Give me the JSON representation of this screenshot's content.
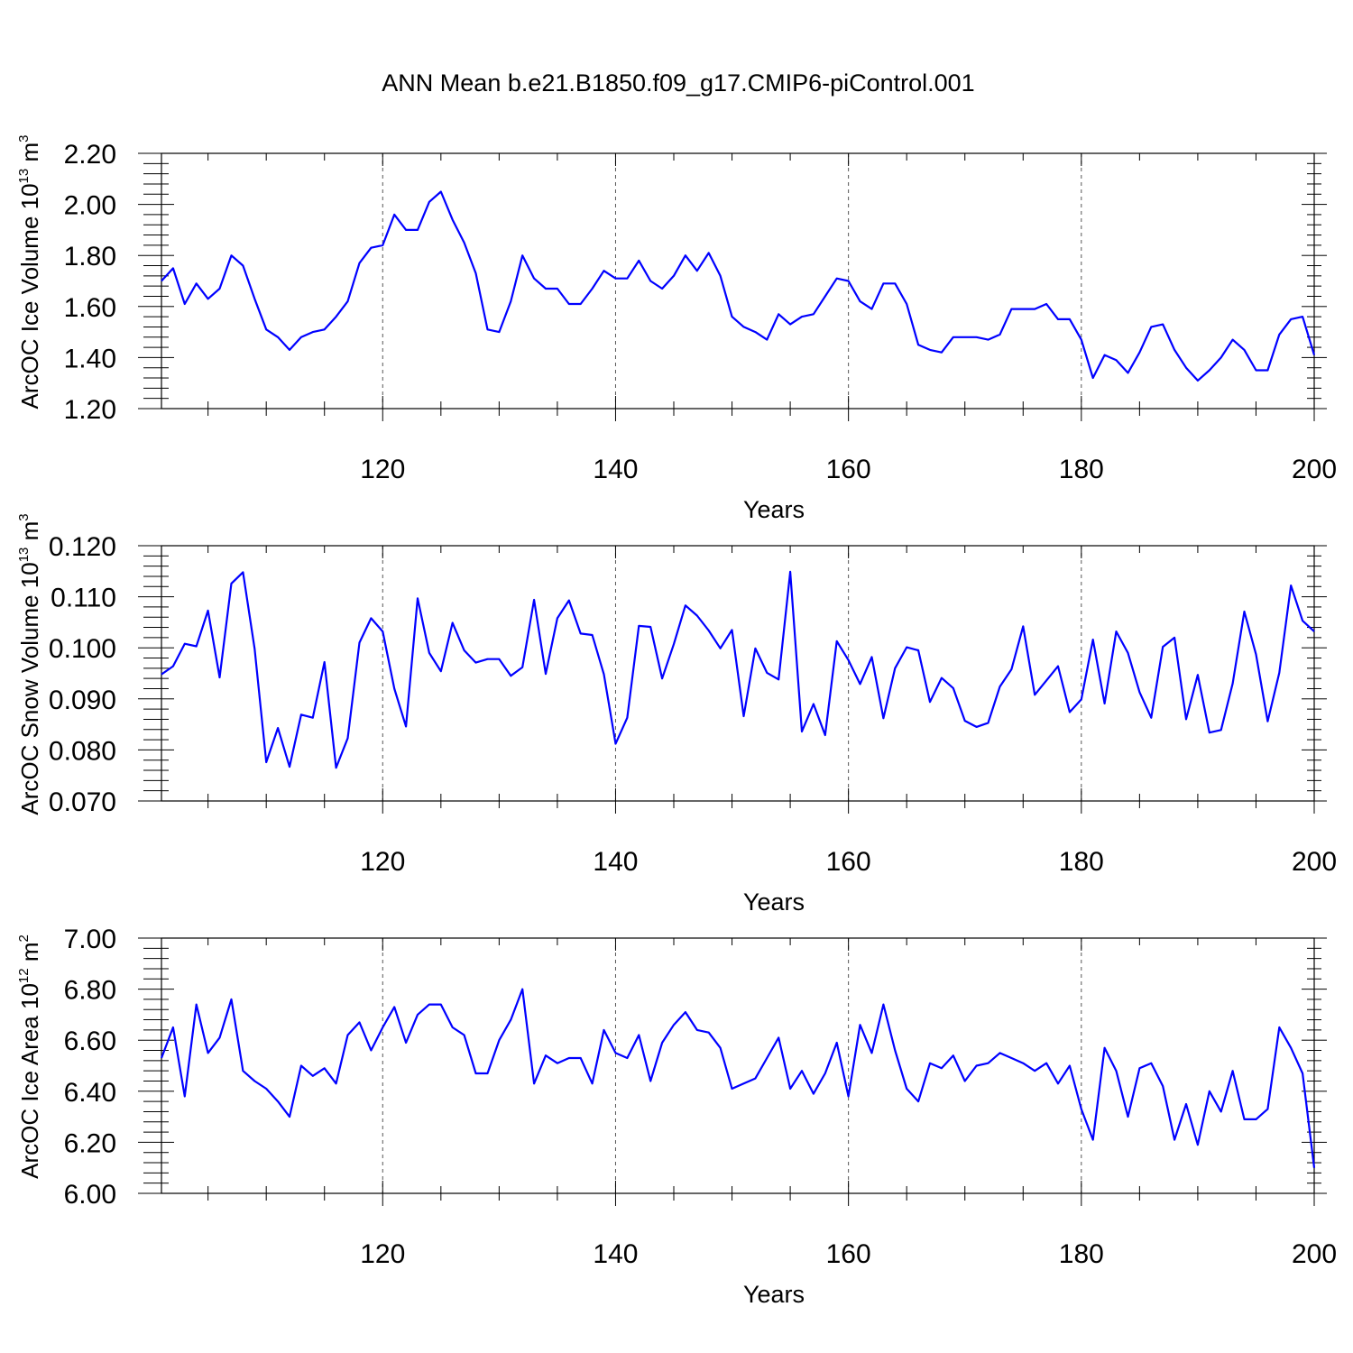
{
  "title": "ANN Mean b.e21.B1850.f09_g17.CMIP6-piControl.001",
  "colors": {
    "line": "#0000ff",
    "axis": "#000000",
    "grid": "#555555"
  },
  "chart_data": [
    {
      "type": "line",
      "name": "ice-volume",
      "ylabel": {
        "text": "ArcOC Ice Volume 10",
        "exp": "13",
        "unit": " m",
        "unit_exp": "3"
      },
      "xlabel": "Years",
      "xlim": [
        101,
        200
      ],
      "ylim": [
        1.2,
        2.2
      ],
      "yticks": [
        1.2,
        1.4,
        1.6,
        1.8,
        2.0,
        2.2
      ],
      "ytick_labels": [
        "1.20",
        "1.40",
        "1.60",
        "1.80",
        "2.00",
        "2.20"
      ],
      "xticks": [
        120,
        140,
        160,
        180,
        200
      ],
      "xtick_labels": [
        "120",
        "140",
        "160",
        "180",
        "200"
      ],
      "grid_x": [
        120,
        140,
        160,
        180
      ],
      "series": [
        {
          "name": "ArcOC Ice Volume",
          "x_start": 101,
          "values": [
            1.7,
            1.75,
            1.61,
            1.69,
            1.63,
            1.67,
            1.8,
            1.76,
            1.63,
            1.51,
            1.48,
            1.43,
            1.48,
            1.5,
            1.51,
            1.56,
            1.62,
            1.77,
            1.83,
            1.84,
            1.96,
            1.9,
            1.9,
            2.01,
            2.05,
            1.94,
            1.85,
            1.73,
            1.51,
            1.5,
            1.62,
            1.8,
            1.71,
            1.67,
            1.67,
            1.61,
            1.61,
            1.67,
            1.74,
            1.71,
            1.71,
            1.78,
            1.7,
            1.67,
            1.72,
            1.8,
            1.74,
            1.81,
            1.72,
            1.56,
            1.52,
            1.5,
            1.47,
            1.57,
            1.53,
            1.56,
            1.57,
            1.64,
            1.71,
            1.7,
            1.62,
            1.59,
            1.69,
            1.69,
            1.61,
            1.45,
            1.43,
            1.42,
            1.48,
            1.48,
            1.48,
            1.47,
            1.49,
            1.59,
            1.59,
            1.59,
            1.61,
            1.55,
            1.55,
            1.47,
            1.32,
            1.41,
            1.39,
            1.34,
            1.42,
            1.52,
            1.53,
            1.43,
            1.36,
            1.31,
            1.35,
            1.4,
            1.47,
            1.43,
            1.35,
            1.35,
            1.49,
            1.55,
            1.56,
            1.41
          ]
        }
      ]
    },
    {
      "type": "line",
      "name": "snow-volume",
      "ylabel": {
        "text": "ArcOC Snow Volume 10",
        "exp": "13",
        "unit": " m",
        "unit_exp": "3"
      },
      "xlabel": "Years",
      "xlim": [
        101,
        200
      ],
      "ylim": [
        0.07,
        0.12
      ],
      "yticks": [
        0.07,
        0.08,
        0.09,
        0.1,
        0.11,
        0.12
      ],
      "ytick_labels": [
        "0.070",
        "0.080",
        "0.090",
        "0.100",
        "0.110",
        "0.120"
      ],
      "xticks": [
        120,
        140,
        160,
        180,
        200
      ],
      "xtick_labels": [
        "120",
        "140",
        "160",
        "180",
        "200"
      ],
      "grid_x": [
        120,
        140,
        160,
        180
      ],
      "series": [
        {
          "name": "ArcOC Snow Volume",
          "x_start": 101,
          "values": [
            0.0948,
            0.0964,
            0.1008,
            0.1003,
            0.1073,
            0.0942,
            0.1126,
            0.1148,
            0.0998,
            0.0776,
            0.0843,
            0.0767,
            0.0869,
            0.0863,
            0.0972,
            0.0765,
            0.0823,
            0.101,
            0.1058,
            0.1032,
            0.092,
            0.0846,
            0.1097,
            0.099,
            0.0954,
            0.1049,
            0.0995,
            0.0971,
            0.0978,
            0.0978,
            0.0945,
            0.0962,
            0.1094,
            0.0949,
            0.1058,
            0.1093,
            0.1028,
            0.1025,
            0.0948,
            0.0812,
            0.0863,
            0.1043,
            0.1041,
            0.094,
            0.1007,
            0.1083,
            0.1063,
            0.1034,
            0.0999,
            0.1035,
            0.0866,
            0.0999,
            0.0951,
            0.0938,
            0.1149,
            0.0836,
            0.089,
            0.0829,
            0.1013,
            0.0976,
            0.0929,
            0.0982,
            0.0862,
            0.096,
            0.1001,
            0.0995,
            0.0894,
            0.0941,
            0.0921,
            0.0857,
            0.0845,
            0.0853,
            0.0924,
            0.0958,
            0.1042,
            0.0908,
            0.0936,
            0.0964,
            0.0874,
            0.0899,
            0.1016,
            0.0891,
            0.1032,
            0.099,
            0.0913,
            0.0863,
            0.1002,
            0.102,
            0.086,
            0.0947,
            0.0834,
            0.0839,
            0.093,
            0.1071,
            0.0987,
            0.0856,
            0.0951,
            0.1122,
            0.1053,
            0.1032
          ]
        }
      ]
    },
    {
      "type": "line",
      "name": "ice-area",
      "ylabel": {
        "text": "ArcOC Ice Area 10",
        "exp": "12",
        "unit": " m",
        "unit_exp": "2"
      },
      "xlabel": "Years",
      "xlim": [
        101,
        200
      ],
      "ylim": [
        6.0,
        7.0
      ],
      "yticks": [
        6.0,
        6.2,
        6.4,
        6.6,
        6.8,
        7.0
      ],
      "ytick_labels": [
        "6.00",
        "6.20",
        "6.40",
        "6.60",
        "6.80",
        "7.00"
      ],
      "xticks": [
        120,
        140,
        160,
        180,
        200
      ],
      "xtick_labels": [
        "120",
        "140",
        "160",
        "180",
        "200"
      ],
      "grid_x": [
        120,
        140,
        160,
        180
      ],
      "series": [
        {
          "name": "ArcOC Ice Area",
          "x_start": 101,
          "values": [
            6.53,
            6.65,
            6.38,
            6.74,
            6.55,
            6.61,
            6.76,
            6.48,
            6.44,
            6.41,
            6.36,
            6.3,
            6.5,
            6.46,
            6.49,
            6.43,
            6.62,
            6.67,
            6.56,
            6.65,
            6.73,
            6.59,
            6.7,
            6.74,
            6.74,
            6.65,
            6.62,
            6.47,
            6.47,
            6.6,
            6.68,
            6.8,
            6.43,
            6.54,
            6.51,
            6.53,
            6.53,
            6.43,
            6.64,
            6.55,
            6.53,
            6.62,
            6.44,
            6.59,
            6.66,
            6.71,
            6.64,
            6.63,
            6.57,
            6.41,
            6.43,
            6.45,
            6.53,
            6.61,
            6.41,
            6.48,
            6.39,
            6.47,
            6.59,
            6.38,
            6.66,
            6.55,
            6.74,
            6.56,
            6.41,
            6.36,
            6.51,
            6.49,
            6.54,
            6.44,
            6.5,
            6.51,
            6.55,
            6.53,
            6.51,
            6.48,
            6.51,
            6.43,
            6.5,
            6.33,
            6.21,
            6.57,
            6.48,
            6.3,
            6.49,
            6.51,
            6.42,
            6.21,
            6.35,
            6.19,
            6.4,
            6.32,
            6.48,
            6.29,
            6.29,
            6.33,
            6.65,
            6.57,
            6.47,
            6.1
          ]
        }
      ]
    }
  ]
}
